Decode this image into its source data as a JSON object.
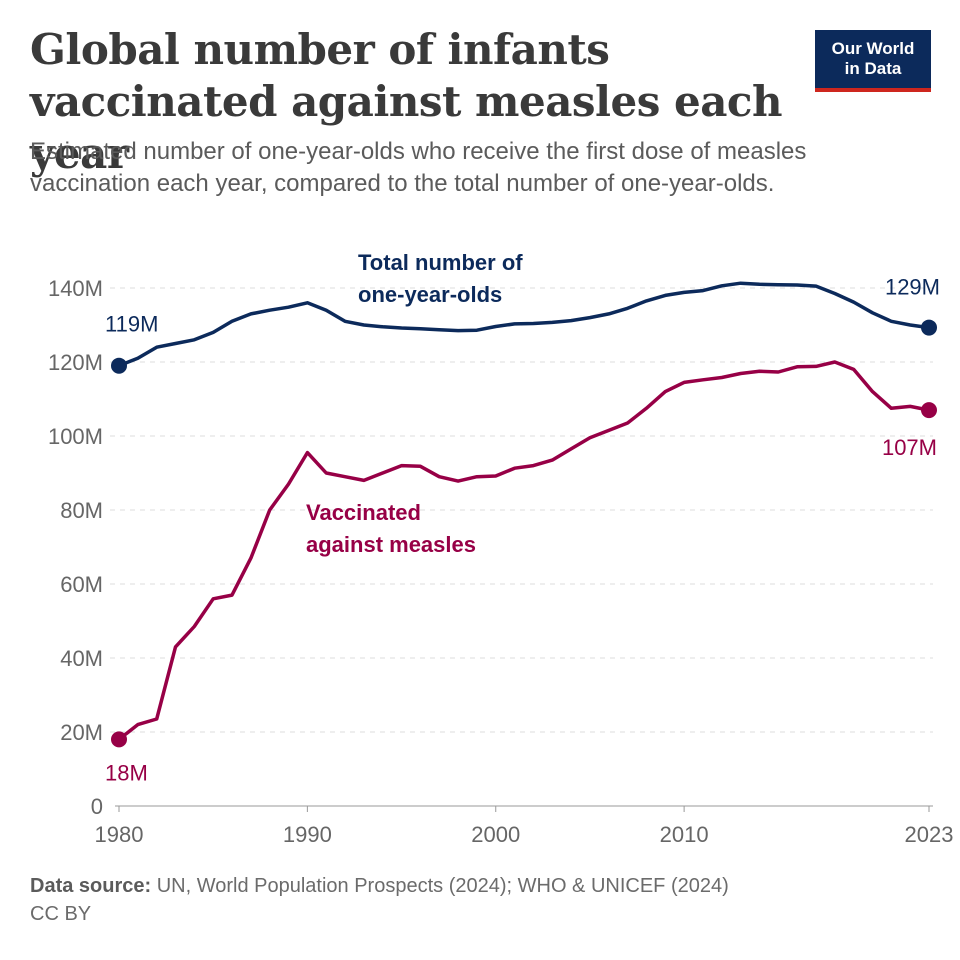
{
  "header": {
    "title": "Global number of infants vaccinated against measles each year",
    "subtitle": "Estimated number of one-year-olds who receive the first dose of measles vaccination each year, compared to the total number of one-year-olds.",
    "logo_line1": "Our World",
    "logo_line2": "in Data"
  },
  "footer": {
    "source_label": "Data source:",
    "source_text": "UN, World Population Prospects (2024); WHO & UNICEF (2024)",
    "license": "CC BY"
  },
  "colors": {
    "total": "#0c2a5b",
    "vaccinated": "#970046",
    "grid": "#dddddd",
    "axis_text": "#666666",
    "logo_bg": "#0c2a5b",
    "logo_accent": "#ce261e"
  },
  "chart_data": {
    "type": "line",
    "xlim": [
      1980,
      2023
    ],
    "ylim": [
      0,
      140000000
    ],
    "grid": "horizontal dashed",
    "x_ticks": [
      1980,
      1990,
      2000,
      2010,
      2023
    ],
    "x_tick_labels": [
      "1980",
      "1990",
      "2000",
      "2010",
      "2023"
    ],
    "y_ticks": [
      0,
      20000000,
      40000000,
      60000000,
      80000000,
      100000000,
      120000000,
      140000000
    ],
    "y_tick_labels": [
      "0",
      "20M",
      "40M",
      "60M",
      "80M",
      "100M",
      "120M",
      "140M"
    ],
    "x": [
      1980,
      1981,
      1982,
      1983,
      1984,
      1985,
      1986,
      1987,
      1988,
      1989,
      1990,
      1991,
      1992,
      1993,
      1994,
      1995,
      1996,
      1997,
      1998,
      1999,
      2000,
      2001,
      2002,
      2003,
      2004,
      2005,
      2006,
      2007,
      2008,
      2009,
      2010,
      2011,
      2012,
      2013,
      2014,
      2015,
      2016,
      2017,
      2018,
      2019,
      2020,
      2021,
      2022,
      2023
    ],
    "series": [
      {
        "name": "Total number of one-year-olds",
        "label_lines": [
          "Total number of",
          "one-year-olds"
        ],
        "color": "#0c2a5b",
        "start_label": "119M",
        "end_label": "129M",
        "values": [
          119000000,
          121000000,
          124000000,
          125000000,
          126000000,
          128000000,
          131000000,
          133000000,
          134000000,
          134800000,
          136000000,
          134000000,
          131000000,
          130000000,
          129500000,
          129200000,
          129000000,
          128700000,
          128500000,
          128600000,
          129600000,
          130300000,
          130400000,
          130700000,
          131200000,
          132000000,
          133000000,
          134500000,
          136500000,
          138000000,
          138800000,
          139300000,
          140600000,
          141300000,
          141000000,
          140900000,
          140800000,
          140500000,
          138500000,
          136200000,
          133300000,
          131000000,
          130000000,
          129300000
        ]
      },
      {
        "name": "Vaccinated against measles",
        "label_lines": [
          "Vaccinated",
          "against measles"
        ],
        "color": "#970046",
        "start_label": "18M",
        "end_label": "107M",
        "values": [
          18000000,
          22000000,
          23500000,
          43000000,
          48500000,
          56000000,
          57000000,
          67000000,
          80000000,
          87000000,
          95500000,
          90000000,
          89000000,
          88000000,
          90000000,
          92000000,
          91800000,
          89000000,
          87800000,
          89000000,
          89200000,
          91300000,
          92000000,
          93500000,
          96500000,
          99500000,
          101500000,
          103500000,
          107500000,
          112000000,
          114500000,
          115200000,
          115800000,
          116900000,
          117500000,
          117300000,
          118700000,
          118800000,
          120000000,
          118000000,
          112000000,
          107500000,
          108000000,
          107000000
        ]
      }
    ]
  }
}
